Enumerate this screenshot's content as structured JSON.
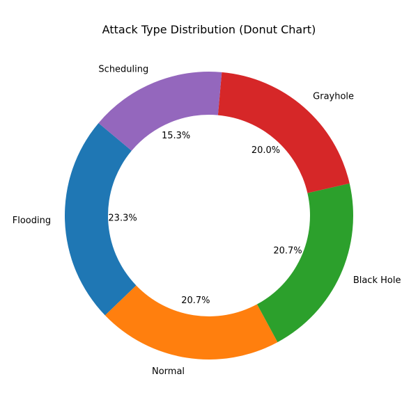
{
  "chart_data": {
    "type": "pie",
    "subtype": "donut",
    "title": "Attack Type Distribution (Donut Chart)",
    "categories": [
      "Flooding",
      "Normal",
      "Black Hole",
      "Grayhole",
      "Scheduling"
    ],
    "values": [
      23.3,
      20.7,
      20.7,
      20.0,
      15.3
    ],
    "value_labels": [
      "23.3%",
      "20.7%",
      "20.7%",
      "20.0%",
      "15.3%"
    ],
    "colors": [
      "#1f77b4",
      "#ff7f0e",
      "#2ca02c",
      "#d62728",
      "#9467bd"
    ],
    "start_angle_deg": 140,
    "direction": "counterclockwise",
    "legend": "none"
  }
}
